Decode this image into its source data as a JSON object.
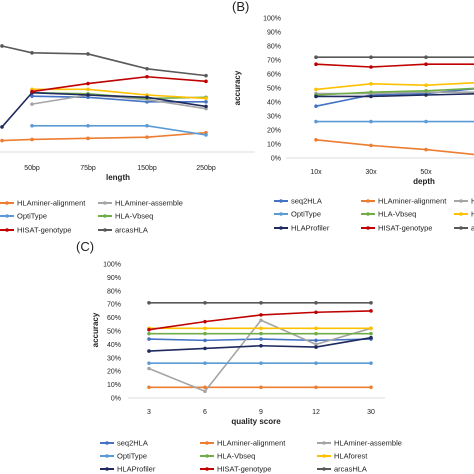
{
  "chart_data": [
    {
      "panel_label": "",
      "type": "line",
      "categories": [
        "",
        "50bp",
        "75bp",
        "150bp",
        "250bp"
      ],
      "xlabel": "length",
      "ylabel": "",
      "ylim": [
        0,
        100
      ],
      "grid": false,
      "legend_placement": "bottom",
      "series": [
        {
          "name": "seq2HLA",
          "color": "#4472C4",
          "values": [
            null,
            49,
            48,
            44,
            44
          ]
        },
        {
          "name": "HLAminer-alignment",
          "color": "#ED7D31",
          "values": [
            10,
            11,
            12,
            13,
            17
          ]
        },
        {
          "name": "HLAminer-assemble",
          "color": "#A5A5A5",
          "values": [
            null,
            42,
            50,
            46,
            38
          ]
        },
        {
          "name": "OptiType",
          "color": "#5B9BD5",
          "values": [
            null,
            23,
            23,
            23,
            15
          ]
        },
        {
          "name": "HLA-Vbseq",
          "color": "#70AD47",
          "values": [
            null,
            52,
            51,
            47,
            48
          ]
        },
        {
          "name": "HLAforest",
          "color": "#FFC000",
          "values": [
            null,
            55,
            55,
            50,
            47
          ]
        },
        {
          "name": "HLAProfiler",
          "color": "#1F2A5E",
          "values": [
            22,
            52,
            50,
            48,
            40
          ]
        },
        {
          "name": "HISAT-genotype",
          "color": "#C00000",
          "values": [
            null,
            53,
            60,
            66,
            62
          ]
        },
        {
          "name": "arcasHLA",
          "color": "#595959",
          "values": [
            93,
            87,
            86,
            73,
            67
          ]
        }
      ]
    },
    {
      "panel_label": "(B)",
      "type": "line",
      "categories": [
        "10x",
        "30x",
        "50x",
        ""
      ],
      "xlabel": "depth",
      "ylabel": "accuracy",
      "ytick_labels": [
        "0%",
        "10%",
        "20%",
        "30%",
        "40%",
        "50%",
        "60%",
        "70%",
        "80%",
        "90%",
        "100%"
      ],
      "ylim": [
        0,
        100
      ],
      "grid": false,
      "legend_placement": "bottom",
      "series": [
        {
          "name": "seq2HLA",
          "color": "#4472C4",
          "values": [
            37,
            45,
            46,
            50
          ]
        },
        {
          "name": "HLAminer-alignment",
          "color": "#ED7D31",
          "values": [
            13,
            9,
            6,
            2
          ]
        },
        {
          "name": "HLAminer-assemble",
          "color": "#A5A5A5",
          "values": [
            46,
            46,
            47,
            47
          ]
        },
        {
          "name": "OptiType",
          "color": "#5B9BD5",
          "values": [
            26,
            26,
            26,
            26
          ]
        },
        {
          "name": "HLA-Vbseq",
          "color": "#70AD47",
          "values": [
            45,
            47,
            48,
            50
          ]
        },
        {
          "name": "HLAforest",
          "color": "#FFC000",
          "values": [
            49,
            53,
            52,
            54
          ]
        },
        {
          "name": "HLAProfiler",
          "color": "#1F2A5E",
          "values": [
            44,
            44,
            45,
            46
          ]
        },
        {
          "name": "HISAT-genotype",
          "color": "#C00000",
          "values": [
            67,
            65,
            67,
            67
          ]
        },
        {
          "name": "arcasHLA",
          "color": "#595959",
          "values": [
            72,
            72,
            72,
            72
          ]
        }
      ]
    },
    {
      "panel_label": "(C)",
      "type": "line",
      "categories": [
        "3",
        "6",
        "9",
        "12",
        "30"
      ],
      "xlabel": "quality score",
      "ylabel": "accuracy",
      "ytick_labels": [
        "0%",
        "10%",
        "20%",
        "30%",
        "40%",
        "50%",
        "60%",
        "70%",
        "80%",
        "90%",
        "100%"
      ],
      "ylim": [
        0,
        100
      ],
      "grid": false,
      "legend_placement": "bottom",
      "series": [
        {
          "name": "seq2HLA",
          "color": "#4472C4",
          "values": [
            44,
            43,
            44,
            43,
            44
          ]
        },
        {
          "name": "HLAminer-alignment",
          "color": "#ED7D31",
          "values": [
            8,
            8,
            8,
            8,
            8
          ]
        },
        {
          "name": "HLAminer-assemble",
          "color": "#A5A5A5",
          "values": [
            22,
            5,
            58,
            40,
            52
          ]
        },
        {
          "name": "OptiType",
          "color": "#5B9BD5",
          "values": [
            26,
            26,
            26,
            26,
            26
          ]
        },
        {
          "name": "HLA-Vbseq",
          "color": "#70AD47",
          "values": [
            48,
            48,
            48,
            48,
            48
          ]
        },
        {
          "name": "HLAforest",
          "color": "#FFC000",
          "values": [
            52,
            52,
            52,
            52,
            52
          ]
        },
        {
          "name": "HLAProfiler",
          "color": "#1F2A5E",
          "values": [
            35,
            37,
            39,
            38,
            45
          ]
        },
        {
          "name": "HISAT-genotype",
          "color": "#C00000",
          "values": [
            51,
            57,
            62,
            64,
            65
          ]
        },
        {
          "name": "arcasHLA",
          "color": "#595959",
          "values": [
            71,
            71,
            71,
            71,
            71
          ]
        }
      ]
    }
  ]
}
